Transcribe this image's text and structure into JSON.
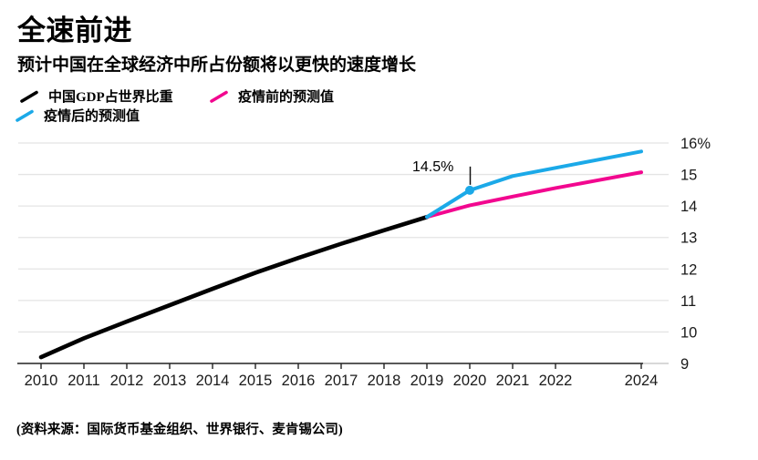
{
  "header": {
    "title": "全速前进",
    "subtitle": "预计中国在全球经济中所占份额将以更快的速度增长"
  },
  "footer": {
    "source": "(资料来源：国际货币基金组织、世界银行、麦肯锡公司)"
  },
  "chart_data": {
    "type": "line",
    "title": "全速前进",
    "subtitle": "预计中国在全球经济中所占份额将以更快的速度增长",
    "grid": true,
    "legend_position": "top-left",
    "x_axis": {
      "range": [
        2010,
        2024
      ],
      "ticks": [
        2010,
        2011,
        2012,
        2013,
        2014,
        2015,
        2016,
        2017,
        2018,
        2019,
        2020,
        2021,
        2022,
        2024
      ]
    },
    "y_axis": {
      "unit": "%",
      "range": [
        9,
        16
      ],
      "ticks": [
        {
          "v": 9,
          "label": "9"
        },
        {
          "v": 10,
          "label": "10"
        },
        {
          "v": 11,
          "label": "11"
        },
        {
          "v": 12,
          "label": "12"
        },
        {
          "v": 13,
          "label": "13"
        },
        {
          "v": 14,
          "label": "14"
        },
        {
          "v": 15,
          "label": "15"
        },
        {
          "v": 16,
          "label": "16%"
        }
      ]
    },
    "series": [
      {
        "name": "中国GDP占世界比重",
        "color": "#000000",
        "x": [
          2010,
          2011,
          2012,
          2013,
          2014,
          2015,
          2016,
          2017,
          2018,
          2019
        ],
        "values": [
          9.2,
          9.8,
          10.33,
          10.85,
          11.37,
          11.88,
          12.35,
          12.8,
          13.23,
          13.65
        ]
      },
      {
        "name": "疫情前的预测值",
        "color": "#f2078f",
        "x": [
          2019,
          2020,
          2021,
          2022,
          2023,
          2024
        ],
        "values": [
          13.65,
          14.02,
          14.3,
          14.57,
          14.82,
          15.07
        ]
      },
      {
        "name": "疫情后的预测值",
        "color": "#1ba9e8",
        "x": [
          2019,
          2020,
          2021,
          2022,
          2023,
          2024
        ],
        "values": [
          13.65,
          14.5,
          14.95,
          15.21,
          15.47,
          15.73
        ],
        "marker": {
          "x": 2020,
          "v": 14.5
        }
      }
    ],
    "annotation": {
      "text": "14.5%",
      "x": 2020,
      "v": 14.5
    }
  }
}
